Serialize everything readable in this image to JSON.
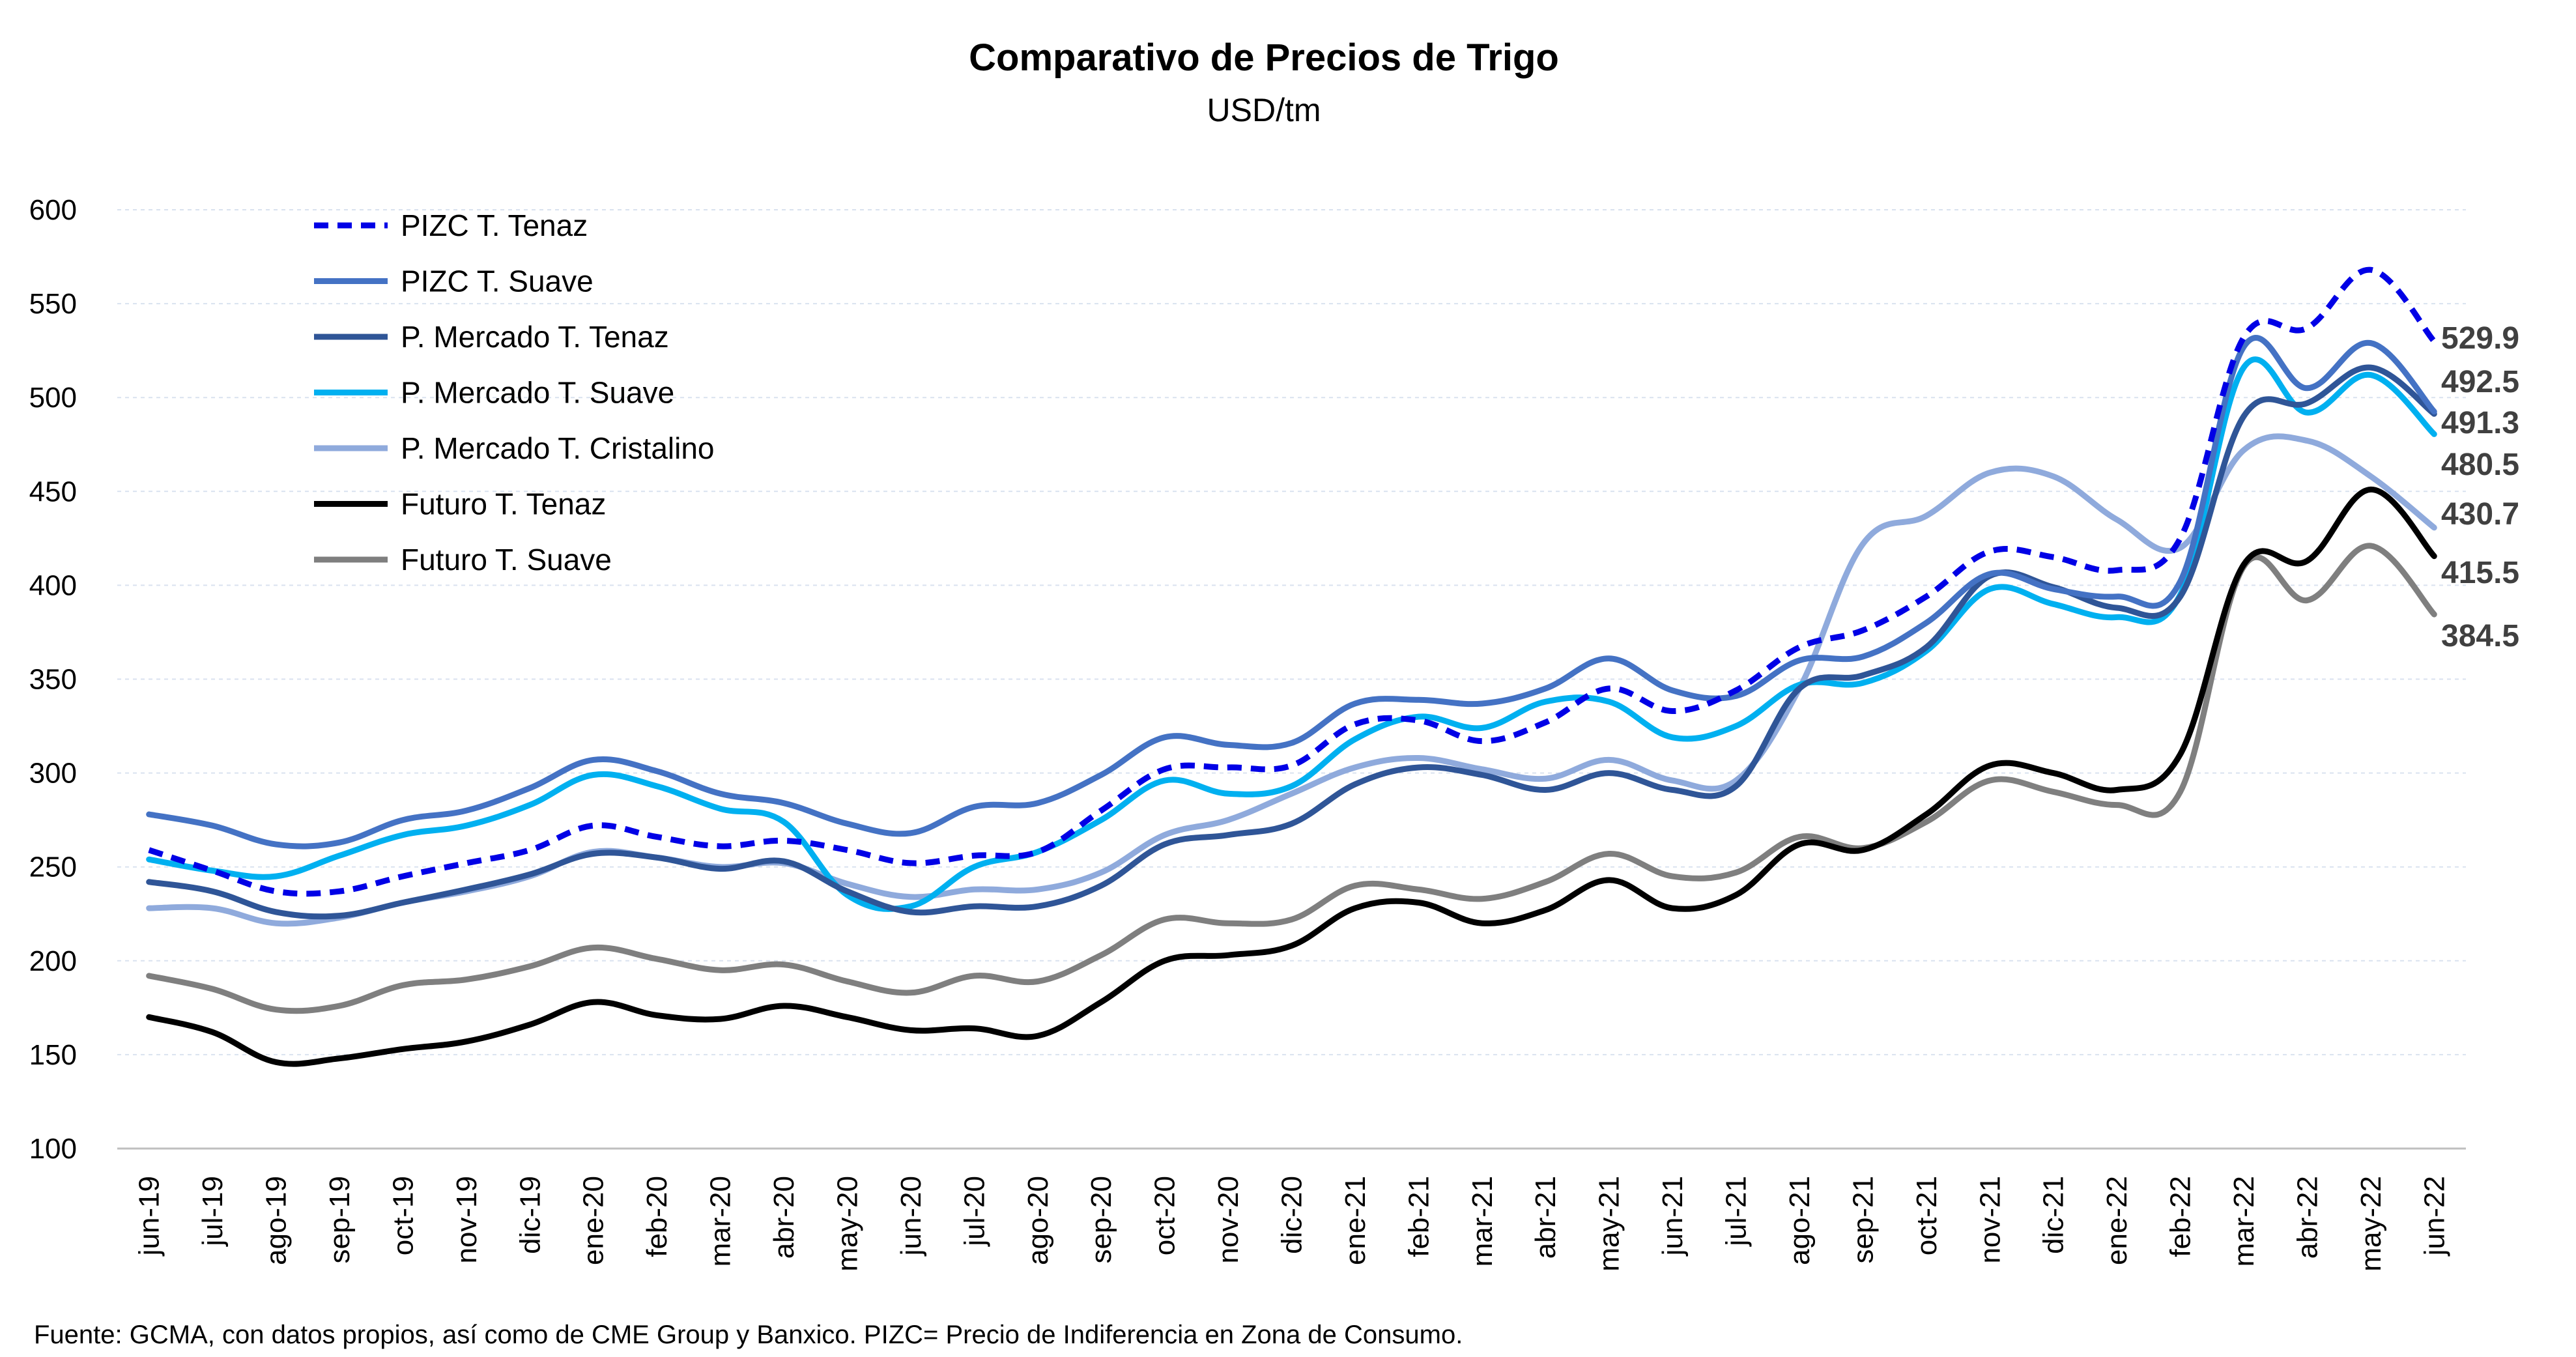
{
  "chart_data": {
    "type": "line",
    "title": "Comparativo de Precios de Trigo",
    "subtitle": "USD/tm",
    "footer": "Fuente: GCMA, con datos propios, así como de CME Group y Banxico. PIZC= Precio de Indiferencia en Zona de Consumo.",
    "ylim": [
      100,
      600
    ],
    "yticks": [
      100,
      150,
      200,
      250,
      300,
      350,
      400,
      450,
      500,
      550,
      600
    ],
    "grid": true,
    "legend_position": "top-left",
    "categories": [
      "jun-19",
      "jul-19",
      "ago-19",
      "sep-19",
      "oct-19",
      "nov-19",
      "dic-19",
      "ene-20",
      "feb-20",
      "mar-20",
      "abr-20",
      "may-20",
      "jun-20",
      "jul-20",
      "ago-20",
      "sep-20",
      "oct-20",
      "nov-20",
      "dic-20",
      "ene-21",
      "feb-21",
      "mar-21",
      "abr-21",
      "may-21",
      "jun-21",
      "jul-21",
      "ago-21",
      "sep-21",
      "oct-21",
      "nov-21",
      "dic-21",
      "ene-22",
      "feb-22",
      "mar-22",
      "abr-22",
      "may-22",
      "jun-22"
    ],
    "series": [
      {
        "name": "PIZC T. Tenaz",
        "color": "#0000e6",
        "dashed": true,
        "end_label": "529.9",
        "values": [
          259,
          248,
          237,
          237,
          245,
          252,
          259,
          272,
          266,
          261,
          264,
          259,
          252,
          256,
          258,
          280,
          302,
          303,
          304,
          326,
          328,
          317,
          327,
          345,
          333,
          344,
          367,
          376,
          394,
          418,
          415,
          408,
          425,
          532,
          537,
          568,
          529.9
        ]
      },
      {
        "name": "PIZC T. Suave",
        "color": "#4472c4",
        "dashed": false,
        "end_label": "492.5",
        "values": [
          278,
          272,
          262,
          263,
          275,
          280,
          292,
          307,
          301,
          289,
          284,
          273,
          268,
          282,
          284,
          299,
          319,
          315,
          316,
          337,
          339,
          337,
          345,
          361,
          344,
          341,
          360,
          362,
          380,
          406,
          398,
          394,
          402,
          527,
          505,
          529,
          492.5
        ]
      },
      {
        "name": "P. Mercado T. Tenaz",
        "color": "#2f5597",
        "dashed": false,
        "end_label": "491.3",
        "values": [
          242,
          237,
          226,
          224,
          231,
          238,
          246,
          257,
          255,
          249,
          253,
          237,
          226,
          229,
          229,
          240,
          262,
          267,
          273,
          294,
          303,
          299,
          291,
          300,
          291,
          293,
          345,
          352,
          367,
          405,
          399,
          388,
          394,
          490,
          497,
          516,
          491.3
        ]
      },
      {
        "name": "P. Mercado T. Suave",
        "color": "#00b0f0",
        "dashed": false,
        "end_label": "480.5",
        "values": [
          254,
          248,
          245,
          256,
          267,
          272,
          283,
          299,
          293,
          281,
          274,
          235,
          229,
          250,
          258,
          275,
          296,
          289,
          293,
          318,
          330,
          324,
          338,
          338,
          319,
          325,
          347,
          348,
          365,
          398,
          390,
          383,
          395,
          516,
          492,
          512,
          480.5
        ]
      },
      {
        "name": "P. Mercado T. Cristalino",
        "color": "#8faadc",
        "dashed": false,
        "end_label": "430.7",
        "values": [
          228,
          228,
          220,
          223,
          231,
          237,
          245,
          258,
          255,
          250,
          252,
          241,
          234,
          238,
          238,
          247,
          267,
          275,
          289,
          303,
          308,
          302,
          297,
          307,
          296,
          296,
          345,
          422,
          437,
          460,
          458,
          435,
          420,
          472,
          477,
          458,
          430.7
        ]
      },
      {
        "name": "Futuro T. Tenaz",
        "color": "#000000",
        "dashed": false,
        "end_label": "415.5",
        "values": [
          170,
          162,
          146,
          148,
          153,
          157,
          166,
          178,
          171,
          169,
          176,
          170,
          163,
          164,
          160,
          178,
          200,
          203,
          208,
          228,
          231,
          220,
          227,
          243,
          228,
          235,
          262,
          259,
          278,
          304,
          300,
          291,
          310,
          411,
          413,
          451,
          415.5
        ]
      },
      {
        "name": "Futuro T. Suave",
        "color": "#7f7f7f",
        "dashed": false,
        "end_label": "384.5",
        "values": [
          192,
          185,
          174,
          176,
          187,
          190,
          197,
          207,
          201,
          195,
          198,
          189,
          183,
          192,
          189,
          203,
          222,
          220,
          222,
          240,
          238,
          233,
          242,
          257,
          245,
          247,
          266,
          260,
          274,
          296,
          290,
          283,
          290,
          410,
          392,
          421,
          384.5
        ]
      }
    ]
  }
}
